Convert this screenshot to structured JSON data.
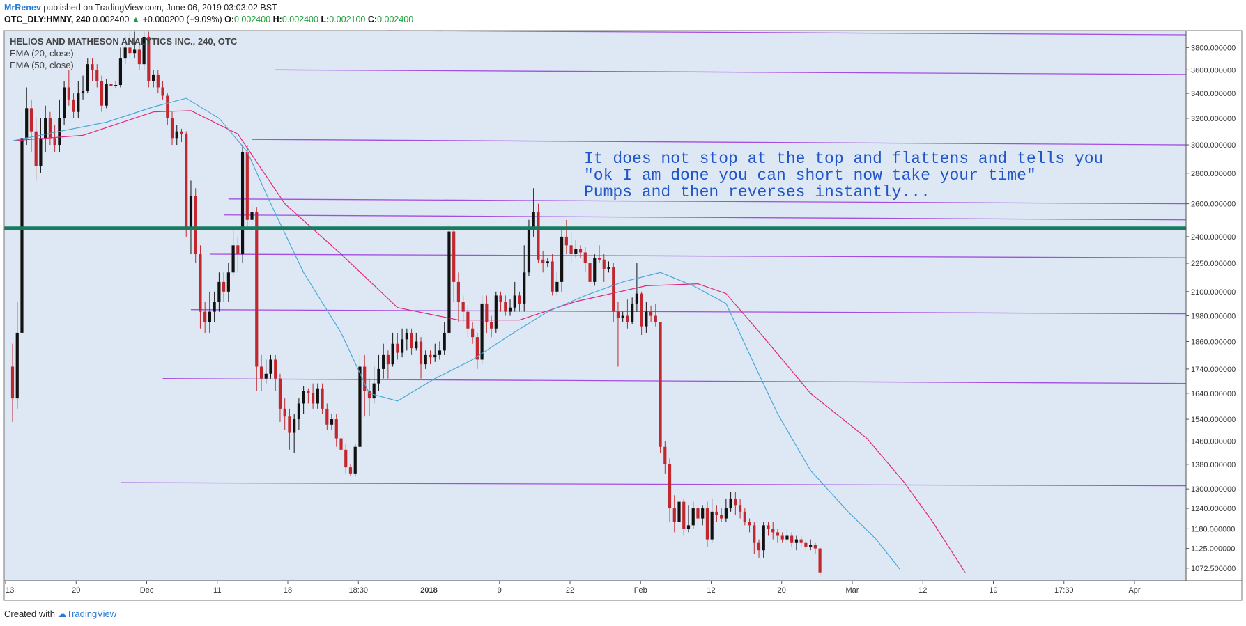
{
  "header": {
    "author": "MrRenev",
    "published": "published on TradingView.com, June 06, 2019 03:03:02 BST"
  },
  "quote": {
    "symbol": "OTC_DLY:HMNY, 240",
    "last": "0.002400",
    "change": "+0.000200 (+9.09%)",
    "o_label": "O:",
    "o": "0.002400",
    "h_label": "H:",
    "h": "0.002400",
    "l_label": "L:",
    "l": "0.002100",
    "c_label": "C:",
    "c": "0.002400"
  },
  "footer": {
    "created_with": "Created with",
    "brand": "TradingView"
  },
  "colors": {
    "plot_bg": "#dde8f4",
    "up_candle": "#111111",
    "down_candle": "#c1272d",
    "ema20": "#4aa8d8",
    "ema50": "#e0287a",
    "trend_line": "#a24fe0",
    "support_line": "#187a5e",
    "annotation": "#2056c8"
  },
  "chart_data": {
    "type": "candlestick",
    "title": "HELIOS AND MATHESON ANALYTICS INC., 240, OTC",
    "legend": [
      "EMA (20, close)",
      "EMA (50, close)"
    ],
    "legend_position": "top-left",
    "y_scale": "log",
    "ylim": [
      1040,
      3960
    ],
    "y_ticks": [
      "3800.000000",
      "3600.000000",
      "3400.000000",
      "3200.000000",
      "3000.000000",
      "2800.000000",
      "2600.000000",
      "2400.000000",
      "2250.000000",
      "2100.000000",
      "1980.000000",
      "1860.000000",
      "1740.000000",
      "1640.000000",
      "1540.000000",
      "1460.000000",
      "1380.000000",
      "1300.000000",
      "1240.000000",
      "1180.000000",
      "1125.000000",
      "1072.500000"
    ],
    "x_ticks": [
      "13",
      "20",
      "Dec",
      "11",
      "18",
      "18:30",
      "2018",
      "9",
      "22",
      "Feb",
      "12",
      "20",
      "Mar",
      "12",
      "19",
      "17:30",
      "Apr"
    ],
    "x_ticks_bold": [
      "2018"
    ],
    "annotation": [
      "It does not stop at the top and flattens and tells you",
      "\"ok I am done you can short now take your time\"",
      "Pumps and then reverses instantly..."
    ],
    "horizontal_support_level": 2450,
    "candles": [
      [
        1750,
        1620,
        1850,
        1530
      ],
      [
        1620,
        1900,
        2050,
        1580
      ],
      [
        1900,
        3050,
        3250,
        2950
      ],
      [
        3050,
        3280,
        3450,
        3000
      ],
      [
        3280,
        3100,
        3350,
        2950
      ],
      [
        3100,
        2850,
        3200,
        2750
      ],
      [
        2850,
        3050,
        3200,
        2800
      ],
      [
        3050,
        3200,
        3300,
        2950
      ],
      [
        3200,
        3050,
        3250,
        3000
      ],
      [
        3050,
        3000,
        3150,
        2950
      ],
      [
        3000,
        3200,
        3350,
        2950
      ],
      [
        3200,
        3450,
        3500,
        3150
      ],
      [
        3450,
        3350,
        3600,
        3300
      ],
      [
        3350,
        3250,
        3400,
        3200
      ],
      [
        3250,
        3400,
        3500,
        3200
      ],
      [
        3400,
        3420,
        3550,
        3350
      ],
      [
        3420,
        3650,
        3700,
        3400
      ],
      [
        3650,
        3600,
        3700,
        3500
      ],
      [
        3600,
        3500,
        3650,
        3450
      ],
      [
        3500,
        3300,
        3550,
        3250
      ],
      [
        3300,
        3480,
        3520,
        3280
      ],
      [
        3480,
        3460,
        3500,
        3400
      ],
      [
        3460,
        3470,
        3500,
        3440
      ],
      [
        3470,
        3700,
        3800,
        3450
      ],
      [
        3700,
        3800,
        3900,
        3650
      ],
      [
        3800,
        3750,
        3950,
        3700
      ],
      [
        3750,
        3780,
        3950,
        3700
      ],
      [
        3780,
        3650,
        3850,
        3600
      ],
      [
        3650,
        3900,
        3950,
        3600
      ],
      [
        3900,
        3500,
        3950,
        3450
      ],
      [
        3500,
        3560,
        3600,
        3450
      ],
      [
        3560,
        3450,
        3600,
        3400
      ],
      [
        3450,
        3380,
        3500,
        3350
      ],
      [
        3380,
        3200,
        3400,
        3150
      ],
      [
        3200,
        3050,
        3250,
        3000
      ],
      [
        3050,
        3100,
        3150,
        3000
      ],
      [
        3100,
        3080,
        3120,
        3020
      ],
      [
        3080,
        2450,
        3100,
        2400
      ],
      [
        2450,
        2650,
        2750,
        2300
      ],
      [
        2650,
        2300,
        2700,
        2250
      ],
      [
        2300,
        2000,
        2350,
        1920
      ],
      [
        2000,
        1950,
        2050,
        1900
      ],
      [
        1950,
        2000,
        2100,
        1900
      ],
      [
        2000,
        2050,
        2100,
        1950
      ],
      [
        2050,
        2150,
        2200,
        2000
      ],
      [
        2150,
        2100,
        2200,
        2050
      ],
      [
        2100,
        2200,
        2250,
        2050
      ],
      [
        2200,
        2350,
        2450,
        2180
      ],
      [
        2350,
        2300,
        2400,
        2200
      ],
      [
        2300,
        2950,
        3000,
        2250
      ],
      [
        2950,
        2500,
        3000,
        2450
      ],
      [
        2500,
        2550,
        2600,
        2500
      ],
      [
        2550,
        1750,
        2580,
        1650
      ],
      [
        1750,
        1700,
        1800,
        1650
      ],
      [
        1700,
        1720,
        1780,
        1680
      ],
      [
        1720,
        1780,
        1800,
        1700
      ],
      [
        1780,
        1700,
        1800,
        1650
      ],
      [
        1700,
        1580,
        1720,
        1530
      ],
      [
        1580,
        1550,
        1620,
        1500
      ],
      [
        1550,
        1490,
        1580,
        1430
      ],
      [
        1490,
        1540,
        1560,
        1420
      ],
      [
        1540,
        1600,
        1620,
        1500
      ],
      [
        1600,
        1650,
        1670,
        1560
      ],
      [
        1650,
        1640,
        1660,
        1600
      ],
      [
        1640,
        1600,
        1680,
        1580
      ],
      [
        1600,
        1660,
        1680,
        1580
      ],
      [
        1660,
        1580,
        1680,
        1560
      ],
      [
        1580,
        1520,
        1600,
        1500
      ],
      [
        1520,
        1540,
        1560,
        1500
      ],
      [
        1540,
        1470,
        1560,
        1440
      ],
      [
        1470,
        1430,
        1480,
        1400
      ],
      [
        1430,
        1370,
        1450,
        1350
      ],
      [
        1370,
        1350,
        1380,
        1340
      ],
      [
        1350,
        1440,
        1450,
        1340
      ],
      [
        1440,
        1750,
        1800,
        1430
      ],
      [
        1750,
        1650,
        1800,
        1550
      ],
      [
        1650,
        1620,
        1700,
        1550
      ],
      [
        1620,
        1680,
        1750,
        1600
      ],
      [
        1680,
        1740,
        1800,
        1650
      ],
      [
        1740,
        1800,
        1850,
        1700
      ],
      [
        1800,
        1760,
        1820,
        1700
      ],
      [
        1760,
        1850,
        1900,
        1750
      ],
      [
        1850,
        1810,
        1900,
        1780
      ],
      [
        1810,
        1870,
        1920,
        1790
      ],
      [
        1870,
        1900,
        1920,
        1820
      ],
      [
        1900,
        1830,
        1920,
        1800
      ],
      [
        1830,
        1860,
        1900,
        1820
      ],
      [
        1860,
        1760,
        1880,
        1700
      ],
      [
        1760,
        1800,
        1820,
        1740
      ],
      [
        1800,
        1790,
        1820,
        1760
      ],
      [
        1790,
        1800,
        1850,
        1770
      ],
      [
        1800,
        1820,
        1860,
        1780
      ],
      [
        1820,
        1900,
        1950,
        1800
      ],
      [
        1900,
        2430,
        2470,
        1880
      ],
      [
        2430,
        2150,
        2450,
        2050
      ],
      [
        2150,
        2050,
        2200,
        1950
      ],
      [
        2050,
        2000,
        2080,
        1950
      ],
      [
        2000,
        1920,
        2030,
        1880
      ],
      [
        1920,
        1880,
        1950,
        1850
      ],
      [
        1880,
        1780,
        1900,
        1740
      ],
      [
        1780,
        2040,
        2080,
        1760
      ],
      [
        2040,
        1950,
        2080,
        1900
      ],
      [
        1950,
        1920,
        1980,
        1880
      ],
      [
        1920,
        2080,
        2100,
        1900
      ],
      [
        2080,
        2050,
        2100,
        2000
      ],
      [
        2050,
        2000,
        2080,
        1980
      ],
      [
        2000,
        2020,
        2060,
        1980
      ],
      [
        2020,
        2080,
        2150,
        2000
      ],
      [
        2080,
        2040,
        2100,
        2000
      ],
      [
        2040,
        2200,
        2350,
        2000
      ],
      [
        2200,
        2450,
        2500,
        2180
      ],
      [
        2450,
        2550,
        2700,
        2400
      ],
      [
        2550,
        2270,
        2600,
        2250
      ],
      [
        2270,
        2250,
        2320,
        2200
      ],
      [
        2250,
        2260,
        2280,
        2230
      ],
      [
        2260,
        2100,
        2300,
        2080
      ],
      [
        2100,
        2150,
        2200,
        2080
      ],
      [
        2150,
        2400,
        2450,
        2100
      ],
      [
        2400,
        2350,
        2500,
        2300
      ],
      [
        2350,
        2300,
        2420,
        2250
      ],
      [
        2300,
        2330,
        2380,
        2280
      ],
      [
        2330,
        2310,
        2350,
        2280
      ],
      [
        2310,
        2250,
        2340,
        2200
      ],
      [
        2250,
        2150,
        2300,
        2100
      ],
      [
        2150,
        2280,
        2300,
        2130
      ],
      [
        2280,
        2270,
        2350,
        2250
      ],
      [
        2270,
        2220,
        2300,
        2150
      ],
      [
        2220,
        2230,
        2260,
        2200
      ],
      [
        2230,
        2000,
        2250,
        1950
      ],
      [
        2000,
        1970,
        2050,
        1750
      ],
      [
        1970,
        1980,
        2000,
        1950
      ],
      [
        1980,
        1950,
        2060,
        1920
      ],
      [
        1950,
        2040,
        2070,
        1940
      ],
      [
        2040,
        2090,
        2250,
        2000
      ],
      [
        2090,
        1930,
        2100,
        1890
      ],
      [
        1930,
        2000,
        2050,
        1900
      ],
      [
        2000,
        1980,
        2030,
        1950
      ],
      [
        1980,
        1950,
        2040,
        1930
      ],
      [
        1950,
        1440,
        1490,
        1420
      ],
      [
        1440,
        1380,
        1460,
        1350
      ],
      [
        1380,
        1240,
        1400,
        1200
      ],
      [
        1240,
        1200,
        1280,
        1170
      ],
      [
        1200,
        1260,
        1290,
        1180
      ],
      [
        1260,
        1180,
        1270,
        1160
      ],
      [
        1180,
        1190,
        1250,
        1170
      ],
      [
        1190,
        1240,
        1260,
        1180
      ],
      [
        1240,
        1210,
        1250,
        1190
      ],
      [
        1210,
        1240,
        1250,
        1190
      ],
      [
        1240,
        1150,
        1260,
        1130
      ],
      [
        1150,
        1230,
        1270,
        1140
      ],
      [
        1230,
        1220,
        1250,
        1200
      ],
      [
        1220,
        1210,
        1240,
        1200
      ],
      [
        1210,
        1240,
        1270,
        1200
      ],
      [
        1240,
        1270,
        1290,
        1230
      ],
      [
        1270,
        1250,
        1290,
        1220
      ],
      [
        1250,
        1230,
        1270,
        1210
      ],
      [
        1230,
        1200,
        1240,
        1190
      ],
      [
        1200,
        1190,
        1210,
        1170
      ],
      [
        1190,
        1140,
        1200,
        1110
      ],
      [
        1140,
        1120,
        1150,
        1100
      ],
      [
        1120,
        1190,
        1200,
        1100
      ],
      [
        1190,
        1180,
        1200,
        1160
      ],
      [
        1180,
        1170,
        1200,
        1150
      ],
      [
        1170,
        1160,
        1180,
        1140
      ],
      [
        1160,
        1150,
        1170,
        1140
      ],
      [
        1150,
        1160,
        1180,
        1140
      ],
      [
        1160,
        1140,
        1170,
        1130
      ],
      [
        1140,
        1150,
        1160,
        1120
      ],
      [
        1150,
        1140,
        1160,
        1130
      ],
      [
        1140,
        1130,
        1150,
        1120
      ],
      [
        1130,
        1135,
        1150,
        1120
      ],
      [
        1135,
        1125,
        1140,
        1110
      ],
      [
        1125,
        1060,
        1130,
        1050
      ]
    ],
    "ema20": [
      [
        0,
        3030
      ],
      [
        10,
        3100
      ],
      [
        20,
        3170
      ],
      [
        30,
        3290
      ],
      [
        37,
        3360
      ],
      [
        44,
        3200
      ],
      [
        50,
        2950
      ],
      [
        55,
        2600
      ],
      [
        62,
        2200
      ],
      [
        70,
        1900
      ],
      [
        76,
        1640
      ],
      [
        82,
        1610
      ],
      [
        90,
        1700
      ],
      [
        98,
        1780
      ],
      [
        106,
        1890
      ],
      [
        114,
        2000
      ],
      [
        122,
        2080
      ],
      [
        130,
        2150
      ],
      [
        138,
        2200
      ],
      [
        145,
        2130
      ],
      [
        152,
        2040
      ],
      [
        158,
        1760
      ],
      [
        163,
        1560
      ],
      [
        170,
        1360
      ],
      [
        178,
        1230
      ],
      [
        184,
        1150
      ],
      [
        189,
        1070
      ]
    ],
    "ema50": [
      [
        0,
        3030
      ],
      [
        15,
        3070
      ],
      [
        30,
        3250
      ],
      [
        38,
        3260
      ],
      [
        48,
        3080
      ],
      [
        58,
        2600
      ],
      [
        70,
        2300
      ],
      [
        82,
        2020
      ],
      [
        95,
        1960
      ],
      [
        108,
        1960
      ],
      [
        120,
        2050
      ],
      [
        135,
        2130
      ],
      [
        146,
        2140
      ],
      [
        152,
        2090
      ],
      [
        160,
        1880
      ],
      [
        170,
        1640
      ],
      [
        182,
        1470
      ],
      [
        190,
        1320
      ],
      [
        196,
        1200
      ],
      [
        203,
        1060
      ]
    ],
    "trend_lines": [
      [
        [
          80,
          3960
        ],
        [
          250,
          3920
        ]
      ],
      [
        [
          56,
          3600
        ],
        [
          250,
          3560
        ]
      ],
      [
        [
          51,
          3040
        ],
        [
          250,
          3000
        ]
      ],
      [
        [
          46,
          2630
        ],
        [
          250,
          2600
        ]
      ],
      [
        [
          45,
          2530
        ],
        [
          250,
          2500
        ]
      ],
      [
        [
          42,
          2300
        ],
        [
          250,
          2280
        ]
      ],
      [
        [
          38,
          2010
        ],
        [
          250,
          1990
        ]
      ],
      [
        [
          32,
          1700
        ],
        [
          250,
          1680
        ]
      ],
      [
        [
          23,
          1320
        ],
        [
          250,
          1310
        ]
      ]
    ]
  }
}
